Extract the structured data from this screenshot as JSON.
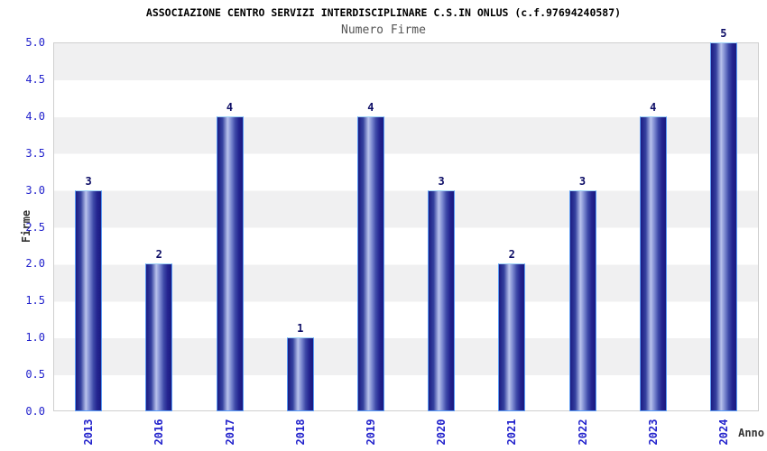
{
  "title": "ASSOCIAZIONE CENTRO SERVIZI INTERDISCIPLINARE C.S.IN ONLUS (c.f.97694240587)",
  "subtitle": "Numero Firme",
  "chart_data": {
    "type": "bar",
    "categories": [
      "2013",
      "2016",
      "2017",
      "2018",
      "2019",
      "2020",
      "2021",
      "2022",
      "2023",
      "2024"
    ],
    "values": [
      3,
      2,
      4,
      1,
      4,
      3,
      2,
      3,
      4,
      5
    ],
    "bar_value_labels": [
      "3",
      "2",
      "4",
      "1",
      "4",
      "3",
      "2",
      "3",
      "4",
      "5"
    ],
    "title": "ASSOCIAZIONE CENTRO SERVIZI INTERDISCIPLINARE C.S.IN ONLUS (c.f.97694240587)",
    "subtitle": "Numero Firme",
    "xlabel": "Anno",
    "ylabel": "Firme",
    "ylim": [
      0,
      5
    ],
    "y_tick_labels": [
      "0.0",
      "0.5",
      "1.0",
      "1.5",
      "2.0",
      "2.5",
      "3.0",
      "3.5",
      "4.0",
      "4.5",
      "5.0"
    ],
    "grid": "alternating horizontal bands every 0.5, gray band at top",
    "legend": "none"
  },
  "labels": {
    "xlabel": "Anno",
    "ylabel": "Firme"
  },
  "colors": {
    "title_color": "#000000",
    "subtitle_color": "#555555",
    "tick_blue": "#2222cc",
    "value_label": "#0d0d66",
    "axis_label_color": "#333333",
    "band_gray": "#f0f0f1",
    "plot_border": "#cfcfcf",
    "bar_border": "#5b9cf5",
    "bar_border_top": "#9fd4f8",
    "bar_dark": "#1b1b82",
    "bar_light": "#b8c2ec"
  }
}
